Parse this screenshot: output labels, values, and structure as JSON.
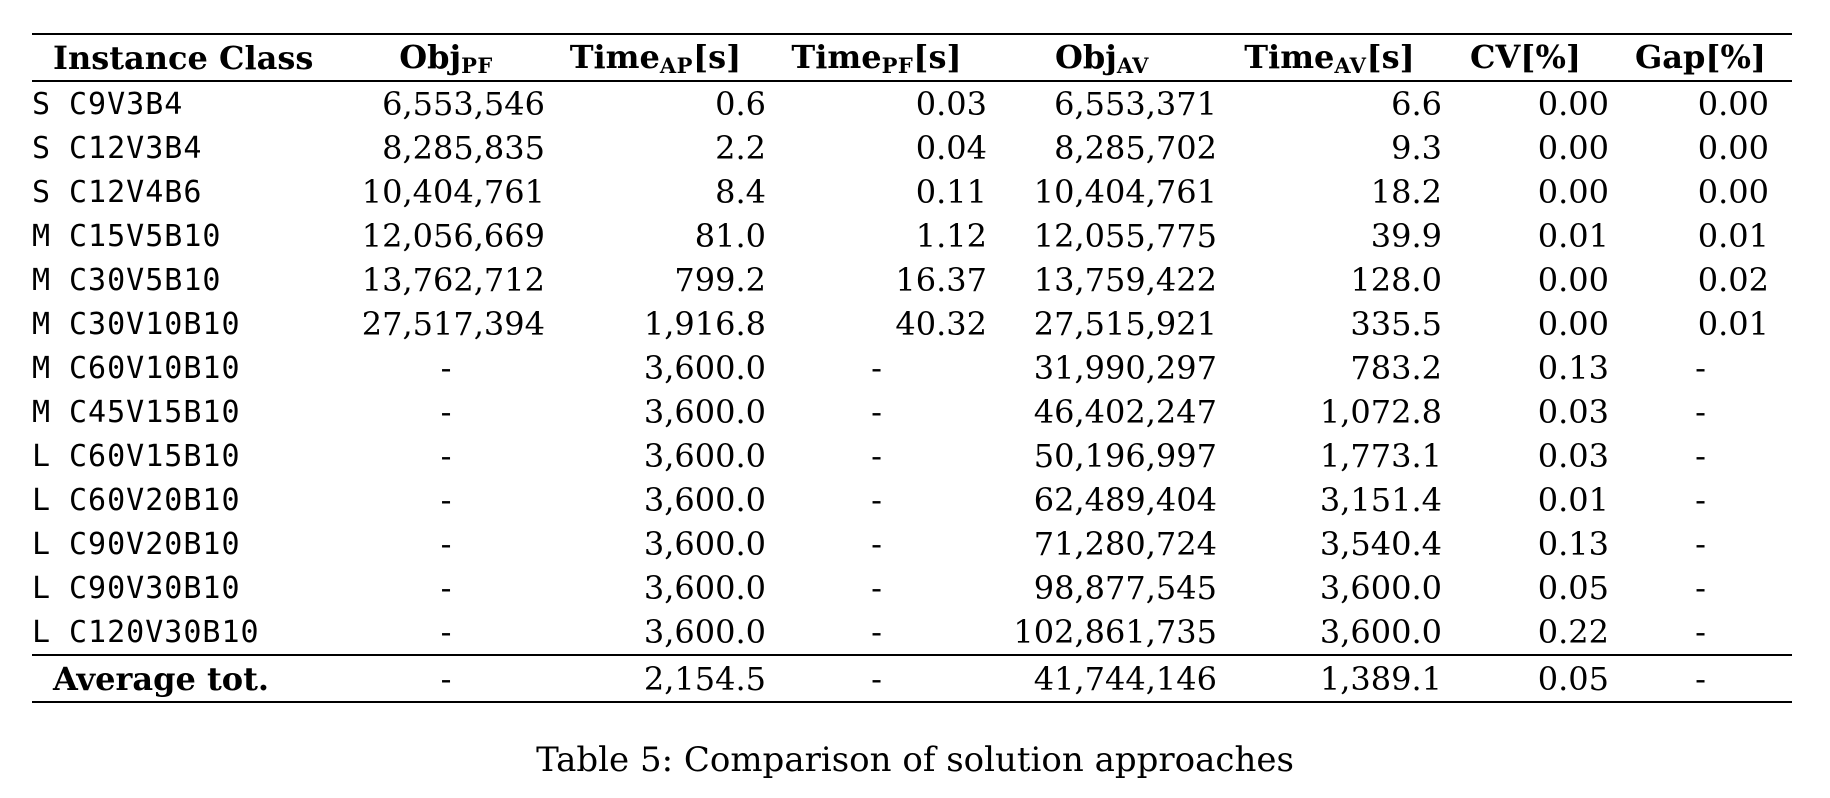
{
  "table": {
    "columns": [
      {
        "key": "instance_class",
        "main": "Instance Class",
        "sub": "",
        "suffix": ""
      },
      {
        "key": "obj_pf",
        "main": "Obj",
        "sub": "PF",
        "suffix": ""
      },
      {
        "key": "time_ap",
        "main": "Time",
        "sub": "AP",
        "suffix": "[s]"
      },
      {
        "key": "time_pf",
        "main": "Time",
        "sub": "PF",
        "suffix": "[s]"
      },
      {
        "key": "obj_av",
        "main": "Obj",
        "sub": "AV",
        "suffix": ""
      },
      {
        "key": "time_av",
        "main": "Time",
        "sub": "AV",
        "suffix": "[s]"
      },
      {
        "key": "cv",
        "main": "CV",
        "sub": "",
        "suffix": "[%]"
      },
      {
        "key": "gap",
        "main": "Gap",
        "sub": "",
        "suffix": "[%]"
      }
    ],
    "rows": [
      {
        "size": "S",
        "name": "C9V3B4",
        "values": [
          "6,553,546",
          "0.6",
          "0.03",
          "6,553,371",
          "6.6",
          "0.00",
          "0.00"
        ]
      },
      {
        "size": "S",
        "name": "C12V3B4",
        "values": [
          "8,285,835",
          "2.2",
          "0.04",
          "8,285,702",
          "9.3",
          "0.00",
          "0.00"
        ]
      },
      {
        "size": "S",
        "name": "C12V4B6",
        "values": [
          "10,404,761",
          "8.4",
          "0.11",
          "10,404,761",
          "18.2",
          "0.00",
          "0.00"
        ]
      },
      {
        "size": "M",
        "name": "C15V5B10",
        "values": [
          "12,056,669",
          "81.0",
          "1.12",
          "12,055,775",
          "39.9",
          "0.01",
          "0.01"
        ]
      },
      {
        "size": "M",
        "name": "C30V5B10",
        "values": [
          "13,762,712",
          "799.2",
          "16.37",
          "13,759,422",
          "128.0",
          "0.00",
          "0.02"
        ]
      },
      {
        "size": "M",
        "name": "C30V10B10",
        "values": [
          "27,517,394",
          "1,916.8",
          "40.32",
          "27,515,921",
          "335.5",
          "0.00",
          "0.01"
        ]
      },
      {
        "size": "M",
        "name": "C60V10B10",
        "values": [
          "-",
          "3,600.0",
          "-",
          "31,990,297",
          "783.2",
          "0.13",
          "-"
        ]
      },
      {
        "size": "M",
        "name": "C45V15B10",
        "values": [
          "-",
          "3,600.0",
          "-",
          "46,402,247",
          "1,072.8",
          "0.03",
          "-"
        ]
      },
      {
        "size": "L",
        "name": "C60V15B10",
        "values": [
          "-",
          "3,600.0",
          "-",
          "50,196,997",
          "1,773.1",
          "0.03",
          "-"
        ]
      },
      {
        "size": "L",
        "name": "C60V20B10",
        "values": [
          "-",
          "3,600.0",
          "-",
          "62,489,404",
          "3,151.4",
          "0.01",
          "-"
        ]
      },
      {
        "size": "L",
        "name": "C90V20B10",
        "values": [
          "-",
          "3,600.0",
          "-",
          "71,280,724",
          "3,540.4",
          "0.13",
          "-"
        ]
      },
      {
        "size": "L",
        "name": "C90V30B10",
        "values": [
          "-",
          "3,600.0",
          "-",
          "98,877,545",
          "3,600.0",
          "0.05",
          "-"
        ]
      },
      {
        "size": "L",
        "name": "C120V30B10",
        "values": [
          "-",
          "3,600.0",
          "-",
          "102,861,735",
          "3,600.0",
          "0.22",
          "-"
        ]
      }
    ],
    "footer": {
      "label": "Average tot.",
      "values": [
        "-",
        "2,154.5",
        "-",
        "41,744,146",
        "1,389.1",
        "0.05",
        "-"
      ]
    }
  },
  "caption": "Table 5: Comparison of solution approaches"
}
